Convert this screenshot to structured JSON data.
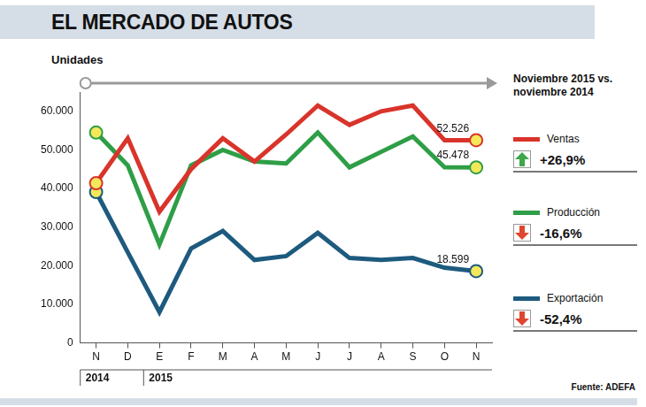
{
  "chart_data": {
    "type": "line",
    "title": "EL MERCADO DE AUTOS",
    "y_label": "Unidades",
    "categories": [
      "N",
      "D",
      "E",
      "F",
      "M",
      "A",
      "M",
      "J",
      "J",
      "A",
      "S",
      "O",
      "N"
    ],
    "category_groups": [
      {
        "label": "2014",
        "first": 0,
        "last": 1
      },
      {
        "label": "2015",
        "first": 2,
        "last": 12
      }
    ],
    "series": [
      {
        "name": "Ventas",
        "color": "#d9342b",
        "values": [
          41400,
          53000,
          34000,
          45000,
          53000,
          47000,
          54000,
          61500,
          56500,
          60000,
          61500,
          52500,
          52526
        ],
        "value_labels": [
          null,
          null,
          null,
          null,
          null,
          null,
          null,
          null,
          null,
          null,
          null,
          null,
          "52.526"
        ],
        "change": 26.9,
        "change_label": "+26,9%"
      },
      {
        "name": "Producción",
        "color": "#2e9e47",
        "values": [
          54500,
          46000,
          25500,
          46000,
          50000,
          47000,
          46500,
          54500,
          45500,
          49500,
          53500,
          45500,
          45478
        ],
        "value_labels": [
          null,
          null,
          null,
          null,
          null,
          null,
          null,
          null,
          null,
          null,
          null,
          null,
          "45.478"
        ],
        "change": -16.6,
        "change_label": "-16,6%"
      },
      {
        "name": "Exportación",
        "color": "#1d5a7e",
        "values": [
          39100,
          23500,
          8000,
          24500,
          29000,
          21500,
          22500,
          28500,
          22000,
          21500,
          22000,
          19500,
          18599
        ],
        "value_labels": [
          null,
          null,
          null,
          null,
          null,
          null,
          null,
          null,
          null,
          null,
          null,
          null,
          "18.599"
        ],
        "change": -52.4,
        "change_label": "-52,4%"
      }
    ],
    "ylim": [
      0,
      65000
    ],
    "yticks": [
      0,
      {
        "value": 10000,
        "label": "10.000"
      },
      {
        "value": 20000,
        "label": "20.000"
      },
      {
        "value": 30000,
        "label": "30.000"
      },
      {
        "value": 40000,
        "label": "40.000"
      },
      {
        "value": 50000,
        "label": "50.000"
      },
      {
        "value": 60000,
        "label": "60.000"
      }
    ],
    "grid": false,
    "legend": "right",
    "legend_title": "Noviembre 2015 vs. noviembre 2014",
    "data_labels": true,
    "source": "Fuente: ADEFA"
  }
}
